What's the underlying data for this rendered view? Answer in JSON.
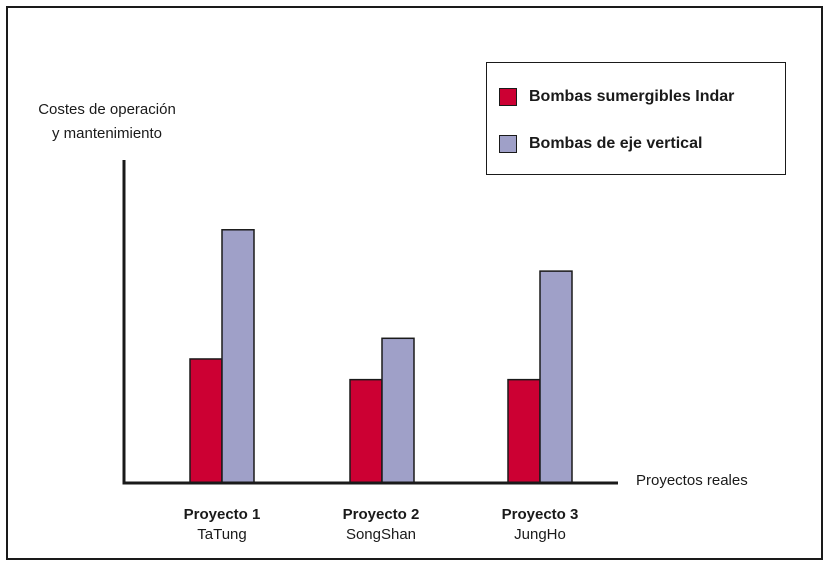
{
  "chart_data": {
    "type": "bar",
    "ylabel_lines": [
      "Costes de operación",
      "y mantenimiento"
    ],
    "xlabel": "Proyectos reales",
    "categories": [
      {
        "name": "Proyecto 1",
        "sub": "TaTung"
      },
      {
        "name": "Proyecto 2",
        "sub": "SongShan"
      },
      {
        "name": "Proyecto 3",
        "sub": "JungHo"
      }
    ],
    "series": [
      {
        "name": "Bombas sumergibles Indar",
        "color": "#cc0033",
        "values": [
          48,
          40,
          40
        ]
      },
      {
        "name": "Bombas de eje vertical",
        "color": "#9fa0c8",
        "values": [
          98,
          56,
          82
        ]
      }
    ],
    "ylim": [
      0,
      125
    ],
    "grid": false,
    "legend_position": "top-right",
    "axis_color": "#1a1a1a"
  }
}
